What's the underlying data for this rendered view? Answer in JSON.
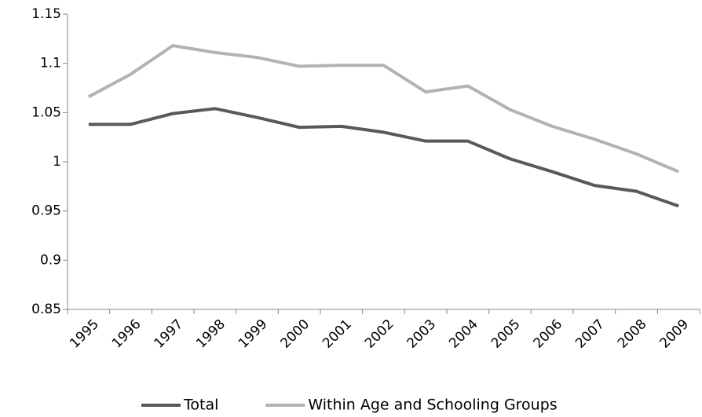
{
  "chart_data": {
    "type": "line",
    "categories": [
      "1995",
      "1996",
      "1997",
      "1998",
      "1999",
      "2000",
      "2001",
      "2002",
      "2003",
      "2004",
      "2005",
      "2006",
      "2007",
      "2008",
      "2009"
    ],
    "series": [
      {
        "name": "Total",
        "color": "#595959",
        "values": [
          1.038,
          1.038,
          1.049,
          1.054,
          1.045,
          1.035,
          1.036,
          1.03,
          1.021,
          1.021,
          1.003,
          0.99,
          0.976,
          0.97,
          0.955
        ]
      },
      {
        "name": "Within Age and Schooling Groups",
        "color": "#b3b3b3",
        "values": [
          1.066,
          1.089,
          1.118,
          1.111,
          1.106,
          1.097,
          1.098,
          1.098,
          1.071,
          1.077,
          1.053,
          1.036,
          1.023,
          1.008,
          0.99
        ]
      }
    ],
    "ylim": [
      0.85,
      1.15
    ],
    "yticks": [
      0.85,
      0.9,
      0.95,
      1,
      1.05,
      1.1,
      1.15
    ],
    "grid": false,
    "legend": "bottom"
  }
}
